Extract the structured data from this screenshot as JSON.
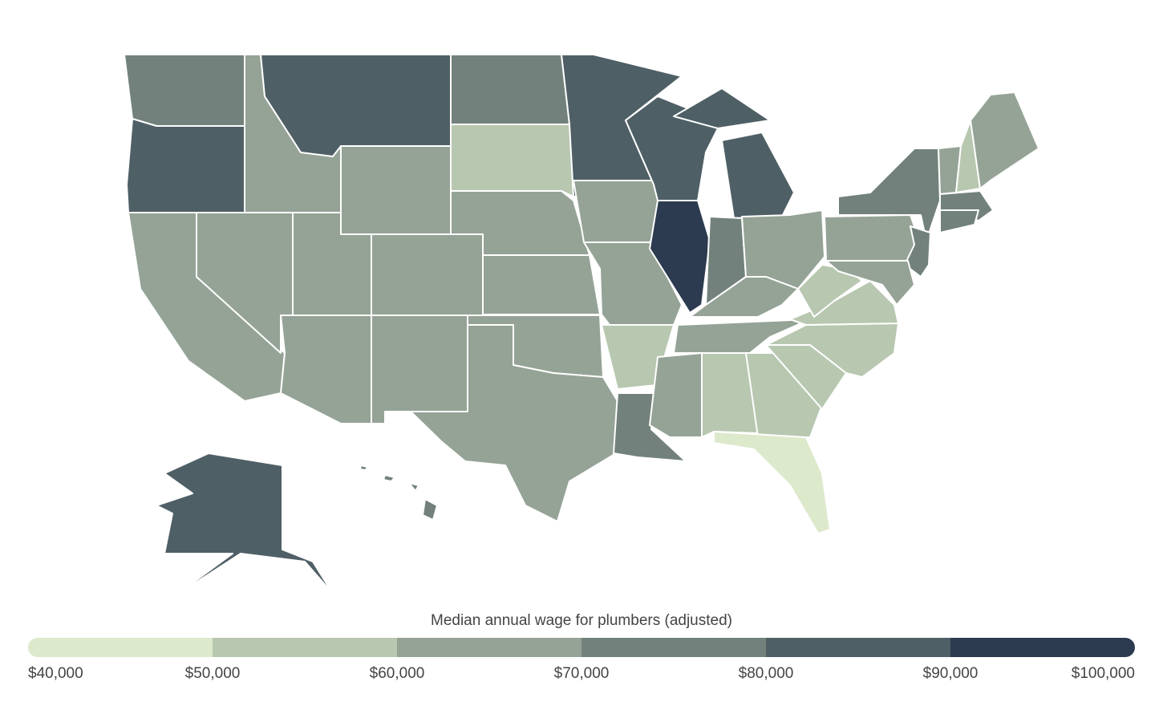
{
  "legend": {
    "title": "Median annual wage for plumbers (adjusted)",
    "ticks": [
      {
        "value": 40000,
        "label": "$40,000"
      },
      {
        "value": 50000,
        "label": "$50,000"
      },
      {
        "value": 60000,
        "label": "$60,000"
      },
      {
        "value": 70000,
        "label": "$70,000"
      },
      {
        "value": 80000,
        "label": "$80,000"
      },
      {
        "value": 90000,
        "label": "$90,000"
      },
      {
        "value": 100000,
        "label": "$100,000"
      }
    ],
    "colors": [
      "#dde9cb",
      "#b8c7b0",
      "#95a396",
      "#72817c",
      "#4f5f66",
      "#2c3b4f"
    ]
  }
}
